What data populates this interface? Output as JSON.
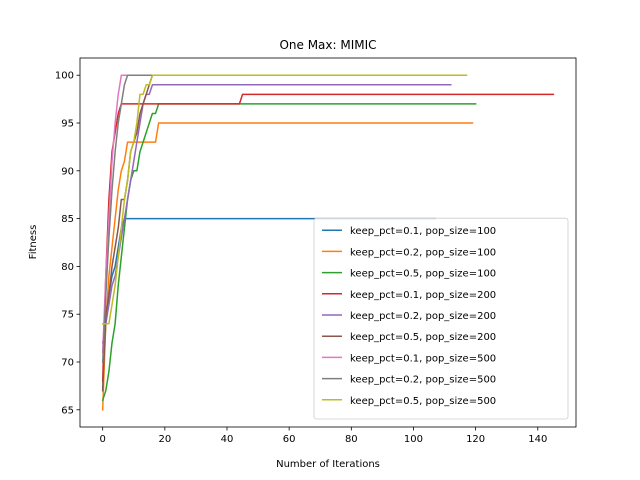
{
  "chart_data": {
    "type": "line",
    "title": "One Max: MIMIC",
    "xlabel": "Number of Iterations",
    "ylabel": "Fitness",
    "xlim": [
      -7.3,
      152.3
    ],
    "ylim": [
      63.2,
      101.8
    ],
    "xticks": [
      0,
      20,
      40,
      60,
      80,
      100,
      120,
      140
    ],
    "yticks": [
      65,
      70,
      75,
      80,
      85,
      90,
      95,
      100
    ],
    "grid": false,
    "legend_position": "lower-right",
    "series": [
      {
        "name": "keep_pct=0.1, pop_size=100",
        "color": "#1f77b4",
        "x": [
          0,
          1,
          2,
          3,
          4,
          5,
          6,
          7,
          107
        ],
        "y": [
          67,
          74,
          77,
          79,
          80,
          82,
          84,
          85,
          85
        ]
      },
      {
        "name": "keep_pct=0.2, pop_size=100",
        "color": "#ff7f0e",
        "x": [
          0,
          1,
          2,
          3,
          4,
          5,
          6,
          7,
          8,
          9,
          10,
          11,
          17,
          18,
          119
        ],
        "y": [
          65,
          74,
          79,
          82,
          85,
          88,
          90,
          91,
          93,
          93,
          93,
          93,
          93,
          95,
          95
        ]
      },
      {
        "name": "keep_pct=0.5, pop_size=100",
        "color": "#2ca02c",
        "x": [
          0,
          1,
          2,
          3,
          4,
          5,
          6,
          7,
          8,
          9,
          10,
          11,
          12,
          13,
          14,
          15,
          16,
          17,
          18,
          120
        ],
        "y": [
          66,
          67,
          69,
          72,
          74,
          78,
          81,
          84,
          87,
          89,
          90,
          90,
          92,
          93,
          94,
          95,
          96,
          96,
          97,
          97
        ]
      },
      {
        "name": "keep_pct=0.1, pop_size=200",
        "color": "#d62728",
        "x": [
          0,
          1,
          2,
          3,
          4,
          5,
          6,
          7,
          44,
          45,
          145
        ],
        "y": [
          68,
          79,
          87,
          92,
          94,
          96,
          97,
          97,
          97,
          98,
          98
        ]
      },
      {
        "name": "keep_pct=0.2, pop_size=200",
        "color": "#9467bd",
        "x": [
          0,
          1,
          2,
          3,
          4,
          5,
          6,
          7,
          8,
          9,
          10,
          11,
          12,
          13,
          14,
          15,
          16,
          17,
          112
        ],
        "y": [
          72,
          74,
          76,
          78,
          79,
          81,
          83,
          85,
          87,
          89,
          91,
          93,
          95,
          97,
          98,
          98,
          99,
          99,
          99
        ]
      },
      {
        "name": "keep_pct=0.5, pop_size=200",
        "color": "#8c564b",
        "x": [
          0,
          1,
          2,
          3,
          4,
          5,
          6,
          7,
          8,
          9,
          10,
          11,
          12,
          13,
          14,
          15,
          16,
          117
        ],
        "y": [
          67,
          75,
          77,
          80,
          82,
          84,
          87,
          87,
          89,
          92,
          93,
          94,
          96,
          97,
          98,
          99,
          100,
          100
        ]
      },
      {
        "name": "keep_pct=0.1, pop_size=500",
        "color": "#e377c2",
        "x": [
          0,
          1,
          2,
          3,
          4,
          5,
          6,
          7,
          117
        ],
        "y": [
          71,
          79,
          85,
          91,
          95,
          98,
          100,
          100,
          100
        ]
      },
      {
        "name": "keep_pct=0.2, pop_size=500",
        "color": "#7f7f7f",
        "x": [
          0,
          1,
          2,
          3,
          4,
          5,
          6,
          7,
          8,
          117
        ],
        "y": [
          70,
          77,
          83,
          88,
          92,
          95,
          97,
          99,
          100,
          100
        ]
      },
      {
        "name": "keep_pct=0.5, pop_size=500",
        "color": "#bcbd22",
        "x": [
          0,
          1,
          2,
          3,
          4,
          5,
          6,
          7,
          8,
          9,
          10,
          11,
          12,
          13,
          14,
          15,
          16,
          17,
          117
        ],
        "y": [
          74,
          74,
          74,
          76,
          78,
          81,
          84,
          87,
          89,
          92,
          93,
          95,
          98,
          98,
          99,
          99,
          100,
          100,
          100
        ]
      }
    ]
  }
}
